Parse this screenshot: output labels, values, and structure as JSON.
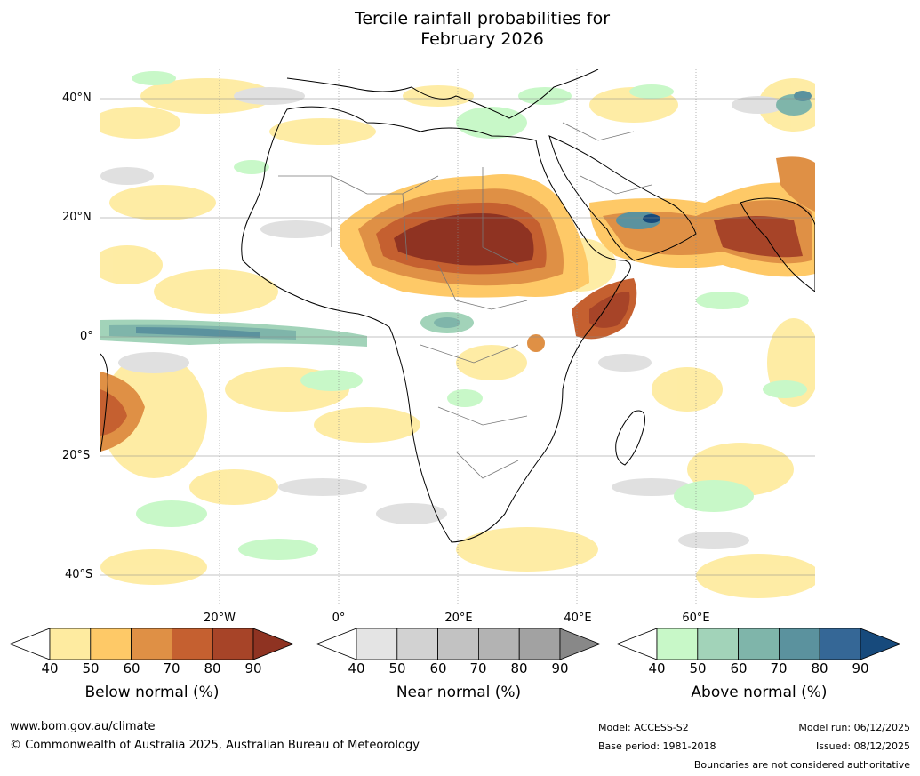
{
  "title_line1": "Tercile rainfall probabilities for",
  "title_line2": "February 2026",
  "map": {
    "lat_labels": [
      "40°N",
      "20°N",
      "0°",
      "20°S",
      "40°S"
    ],
    "lon_labels": [
      "20°W",
      "0°",
      "20°E",
      "40°E",
      "60°E"
    ]
  },
  "colorbars": [
    {
      "label": "Below normal (%)",
      "ticks": [
        "40",
        "50",
        "60",
        "70",
        "80",
        "90"
      ],
      "colors": [
        "#ffffff",
        "#feeba0",
        "#fec967",
        "#df9045",
        "#c56030",
        "#a74428",
        "#8f3322"
      ]
    },
    {
      "label": "Near normal (%)",
      "ticks": [
        "40",
        "50",
        "60",
        "70",
        "80",
        "90"
      ],
      "colors": [
        "#ffffff",
        "#e4e4e4",
        "#d2d2d2",
        "#c2c2c2",
        "#b3b3b3",
        "#a2a2a2",
        "#888888"
      ]
    },
    {
      "label": "Above normal (%)",
      "ticks": [
        "40",
        "50",
        "60",
        "70",
        "80",
        "90"
      ],
      "colors": [
        "#ffffff",
        "#c8f8c8",
        "#a2d3b9",
        "#7fb5aa",
        "#5b929e",
        "#356796",
        "#174a7c"
      ]
    }
  ],
  "footer": {
    "url": "www.bom.gov.au/climate",
    "copyright": "© Commonwealth of Australia 2025, Australian Bureau of Meteorology",
    "model": "Model: ACCESS-S2",
    "base_period": "Base period: 1981-2018",
    "model_run": "Model run: 06/12/2025",
    "issued": "Issued: 08/12/2025",
    "disclaimer": "Boundaries are not considered authoritative"
  }
}
